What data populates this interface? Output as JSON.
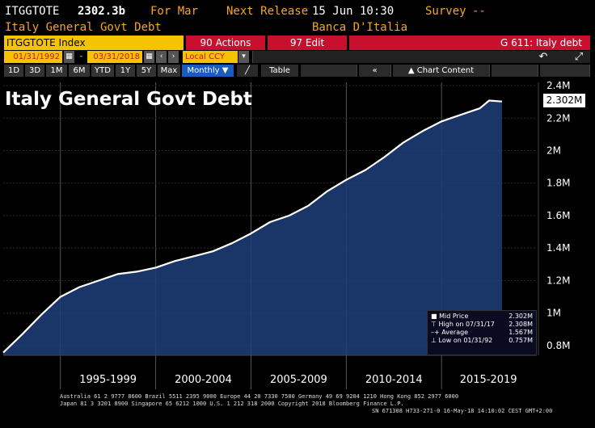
{
  "header": {
    "ticker": "ITGGTOTE",
    "value": "2302.3b",
    "period": "For Mar",
    "next_release_label": "Next Release",
    "next_release": "15 Jun 10:30",
    "survey_label": "Survey",
    "survey_value": "--",
    "name": "Italy General Govt Debt",
    "source": "Banca D'Italia"
  },
  "command_bar": {
    "security": "ITGGTOTE Index",
    "actions": "90 Actions",
    "edit": "97 Edit",
    "function": "G 611: Italy debt"
  },
  "controls": {
    "start_date": "01/31/1992",
    "end_date": "03/31/2018",
    "currency": "Local CCY",
    "periods": [
      "1D",
      "3D",
      "1M",
      "6M",
      "YTD",
      "1Y",
      "5Y",
      "Max"
    ],
    "frequency": "Monthly",
    "table_label": "Table",
    "chart_content_label": "Chart Content"
  },
  "chart_data": {
    "type": "area",
    "title": "Italy General Govt Debt",
    "x": [
      "1992-01",
      "1993-01",
      "1994-01",
      "1995-01",
      "1996-01",
      "1997-01",
      "1998-01",
      "1999-01",
      "2000-01",
      "2001-01",
      "2002-01",
      "2003-01",
      "2004-01",
      "2005-01",
      "2006-01",
      "2007-01",
      "2008-01",
      "2009-01",
      "2010-01",
      "2011-01",
      "2012-01",
      "2013-01",
      "2014-01",
      "2015-01",
      "2016-01",
      "2017-01",
      "2017-07",
      "2018-03"
    ],
    "y_millions": [
      0.757,
      0.87,
      0.99,
      1.1,
      1.16,
      1.2,
      1.24,
      1.255,
      1.28,
      1.32,
      1.35,
      1.38,
      1.43,
      1.49,
      1.56,
      1.6,
      1.66,
      1.75,
      1.82,
      1.88,
      1.96,
      2.05,
      2.12,
      2.18,
      2.22,
      2.26,
      2.308,
      2.302
    ],
    "ytick_labels": [
      "0.8M",
      "1M",
      "1.2M",
      "1.4M",
      "1.6M",
      "1.8M",
      "2M",
      "2.2M",
      "2.4M"
    ],
    "ytick_values": [
      0.8,
      1.0,
      1.2,
      1.4,
      1.6,
      1.8,
      2.0,
      2.2,
      2.4
    ],
    "ylim": [
      0.74,
      2.42
    ],
    "xtick_labels": [
      "1995-1999",
      "2000-2004",
      "2005-2009",
      "2010-2014",
      "2015-2019"
    ],
    "last_value_label": "2.302M",
    "legend": [
      {
        "label": "Mid Price",
        "value": "2.302M"
      },
      {
        "label": "High on 07/31/17",
        "value": "2.308M"
      },
      {
        "label": "Average",
        "value": "1.567M"
      },
      {
        "label": "Low on 01/31/92",
        "value": "0.757M"
      }
    ],
    "colors": {
      "line": "#ffffff",
      "fill": "#1e3f7a",
      "background": "#000000"
    }
  },
  "footer": {
    "line1": "Australia 61 2 9777 8600 Brazil 5511 2395 9000 Europe 44 20 7330 7500 Germany 49 69 9204 1210 Hong Kong 852 2977 6000",
    "line2": "Japan 81 3 3201 8900          Singapore 65 6212 1000        U.S. 1 212 318 2000           Copyright 2018 Bloomberg Finance L.P.",
    "line3": "SN 671308 H733-271-0 16-May-18 14:10:02 CEST GMT+2:00"
  }
}
